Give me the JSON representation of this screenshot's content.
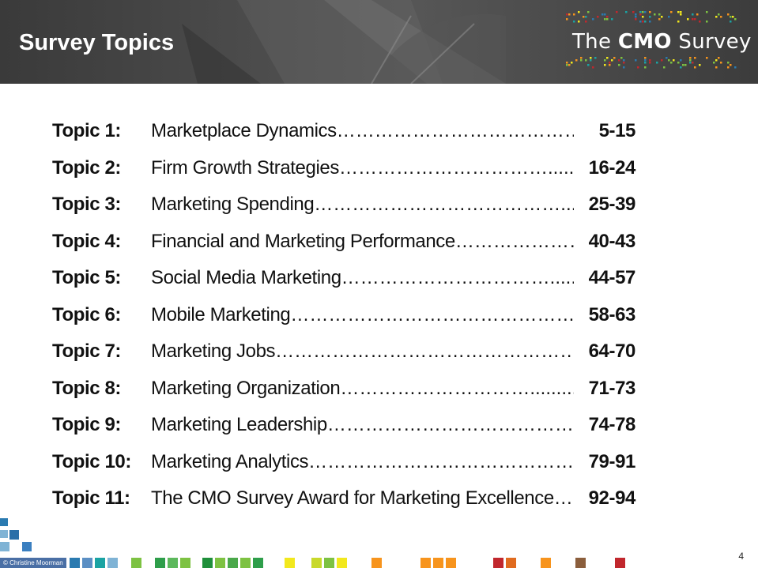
{
  "header": {
    "title": "Survey Topics",
    "logo_prefix": "The",
    "logo_bold": "CMO",
    "logo_suffix": "Survey"
  },
  "topics": [
    {
      "label": "Topic 1:",
      "title": "Marketplace Dynamics",
      "dots": "…………………………………........",
      "pages": "5-15"
    },
    {
      "label": "Topic 2:",
      "title": "Firm Growth Strategies",
      "dots": "……………………………...........",
      "pages": "16-24"
    },
    {
      "label": "Topic 3:",
      "title": "Marketing Spending",
      "dots": "…………………………………..........",
      "pages": "25-39"
    },
    {
      "label": "Topic 4:",
      "title": "Financial and Marketing Performance",
      "dots": "……………………..",
      "pages": "40-43"
    },
    {
      "label": "Topic 5:",
      "title": "Social Media Marketing",
      "dots": "……………………………..............",
      "pages": "44-57"
    },
    {
      "label": "Topic 6:",
      "title": "Mobile Marketing",
      "dots": "………………………………………..",
      "pages": "58-63"
    },
    {
      "label": "Topic 7:",
      "title": "Marketing Jobs",
      "dots": "…………………………………………..",
      "pages": "64-70"
    },
    {
      "label": "Topic 8:",
      "title": "Marketing Organization",
      "dots": "………………………….............",
      "pages": "71-73"
    },
    {
      "label": "Topic 9:",
      "title": "Marketing Leadership",
      "dots": "……………………………………..",
      "pages": "74-78"
    },
    {
      "label": "Topic 10:",
      "title": "Marketing Analytics",
      "dots": "………………………………………..",
      "pages": "79-91"
    },
    {
      "label": "Topic 11:",
      "title": "The CMO Survey Award for Marketing Excellence",
      "dots": "……..",
      "pages": "92-94"
    }
  ],
  "footer": {
    "copyright": "© Christine Moorman",
    "page_number": "4"
  },
  "colors": {
    "header_bg": "#4a4a4a",
    "brand_green": "#7dc242",
    "brand_yellow": "#f2e81d",
    "brand_orange": "#f7941d",
    "brand_red": "#c1272d",
    "brand_blue": "#2a7ab0",
    "brand_teal": "#1aa3a3"
  }
}
